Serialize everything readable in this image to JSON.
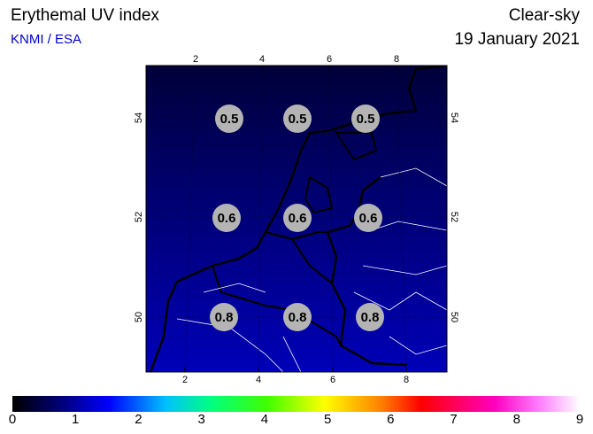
{
  "header": {
    "title": "Erythemal UV index",
    "source": "KNMI / ESA",
    "condition": "Clear-sky",
    "date": "19 January 2021"
  },
  "map": {
    "lon_ticks_top": [
      2,
      4,
      6,
      8
    ],
    "lon_ticks_bottom": [
      2,
      4,
      6,
      8
    ],
    "lat_ticks": [
      54,
      52,
      50
    ],
    "values": [
      [
        0.5,
        0.5,
        0.5
      ],
      [
        0.6,
        0.6,
        0.6
      ],
      [
        0.8,
        0.8,
        0.8
      ]
    ]
  },
  "colorbar": {
    "ticks": [
      0,
      1,
      2,
      3,
      4,
      5,
      6,
      7,
      8,
      9
    ]
  }
}
